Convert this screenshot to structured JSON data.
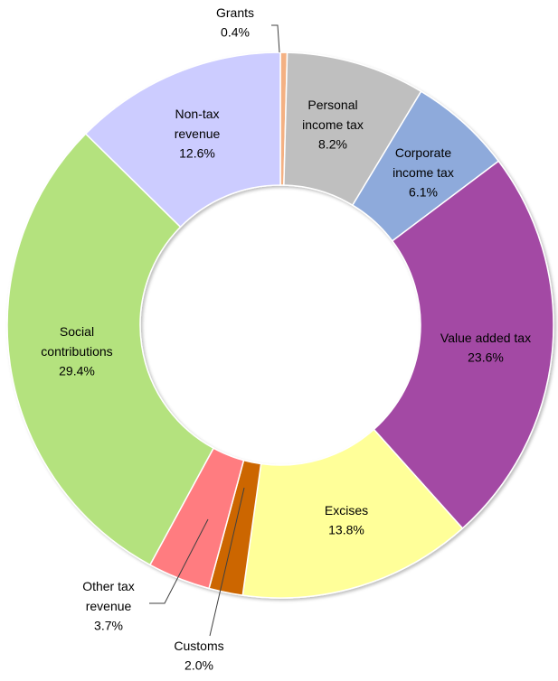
{
  "chart_data": {
    "type": "donut",
    "categories": [
      "Grants",
      "Personal income tax",
      "Corporate income tax",
      "Value added tax",
      "Excises",
      "Customs",
      "Other tax revenue",
      "Social contributions",
      "Non-tax revenue"
    ],
    "values": [
      0.4,
      8.2,
      6.1,
      23.6,
      13.8,
      2.0,
      3.7,
      29.4,
      12.6
    ],
    "value_labels": [
      "0.4%",
      "8.2%",
      "6.1%",
      "23.6%",
      "13.8%",
      "2.0%",
      "3.7%",
      "29.4%",
      "12.6%"
    ],
    "colors": [
      "#f4b183",
      "#bfbfbf",
      "#8eaadb",
      "#a349a4",
      "#ffff99",
      "#cc6600",
      "#ff7c80",
      "#b4e27e",
      "#ccccff"
    ]
  }
}
